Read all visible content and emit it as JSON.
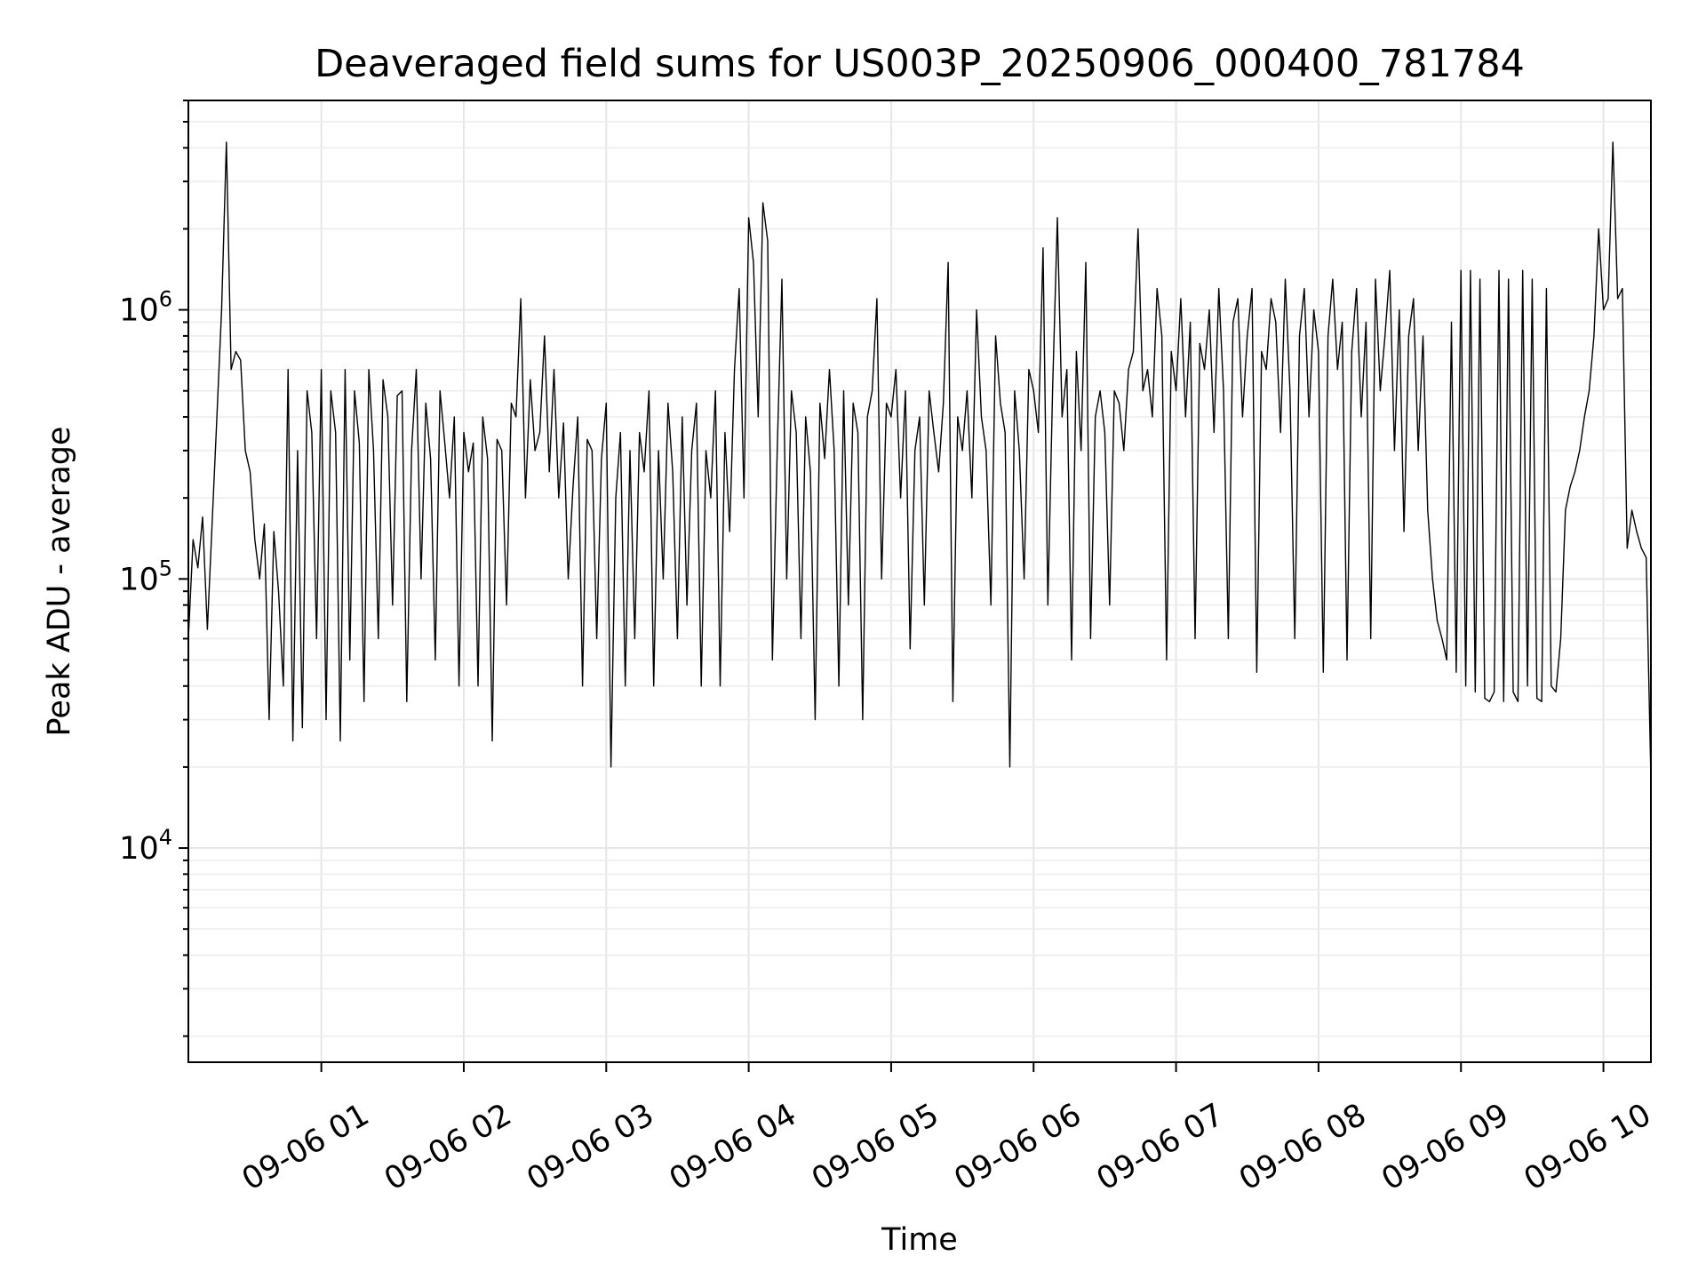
{
  "chart_data": {
    "type": "line",
    "title": "Deaveraged field sums for US003P_20250906_000400_781784",
    "xlabel": "Time",
    "ylabel": "Peak ADU - average",
    "yscale": "log",
    "ylim": [
      1600,
      6000000
    ],
    "xlim": [
      "2025-09-06 00:04",
      "2025-09-06 10:20"
    ],
    "x_tick_labels": [
      "09-06 01",
      "09-06 02",
      "09-06 03",
      "09-06 04",
      "09-06 05",
      "09-06 06",
      "09-06 07",
      "09-06 08",
      "09-06 09",
      "09-06 10"
    ],
    "y_tick_labels": [
      {
        "base": "10",
        "exp": "4"
      },
      {
        "base": "10",
        "exp": "5"
      },
      {
        "base": "10",
        "exp": "6"
      }
    ],
    "grid": true,
    "legend": false,
    "colors": {
      "line": "#000000",
      "grid": "#e6e6e6"
    },
    "series": [
      {
        "x": [
          "00:04",
          "00:06",
          "00:08",
          "00:10",
          "00:12",
          "00:14",
          "00:16",
          "00:18",
          "00:20",
          "00:22",
          "00:24",
          "00:26",
          "00:28",
          "00:30",
          "00:32",
          "00:34",
          "00:36",
          "00:38",
          "00:40",
          "00:42",
          "00:44",
          "00:46",
          "00:48",
          "00:50",
          "00:52",
          "00:54",
          "00:56",
          "00:58",
          "01:00",
          "01:02",
          "01:04",
          "01:06",
          "01:08",
          "01:10",
          "01:12",
          "01:14",
          "01:16",
          "01:18",
          "01:20",
          "01:22",
          "01:24",
          "01:26",
          "01:28",
          "01:30",
          "01:32",
          "01:34",
          "01:36",
          "01:38",
          "01:40",
          "01:42",
          "01:44",
          "01:46",
          "01:48",
          "01:50",
          "01:52",
          "01:54",
          "01:56",
          "01:58",
          "02:00",
          "02:02",
          "02:04",
          "02:06",
          "02:08",
          "02:10",
          "02:12",
          "02:14",
          "02:16",
          "02:18",
          "02:20",
          "02:22",
          "02:24",
          "02:26",
          "02:28",
          "02:30",
          "02:32",
          "02:34",
          "02:36",
          "02:38",
          "02:40",
          "02:42",
          "02:44",
          "02:46",
          "02:48",
          "02:50",
          "02:52",
          "02:54",
          "02:56",
          "02:58",
          "03:00",
          "03:02",
          "03:04",
          "03:06",
          "03:08",
          "03:10",
          "03:12",
          "03:14",
          "03:16",
          "03:18",
          "03:20",
          "03:22",
          "03:24",
          "03:26",
          "03:28",
          "03:30",
          "03:32",
          "03:34",
          "03:36",
          "03:38",
          "03:40",
          "03:42",
          "03:44",
          "03:46",
          "03:48",
          "03:50",
          "03:52",
          "03:54",
          "03:56",
          "03:58",
          "04:00",
          "04:02",
          "04:04",
          "04:06",
          "04:08",
          "04:10",
          "04:12",
          "04:14",
          "04:16",
          "04:18",
          "04:20",
          "04:22",
          "04:24",
          "04:26",
          "04:28",
          "04:30",
          "04:32",
          "04:34",
          "04:36",
          "04:38",
          "04:40",
          "04:42",
          "04:44",
          "04:46",
          "04:48",
          "04:50",
          "04:52",
          "04:54",
          "04:56",
          "04:58",
          "05:00",
          "05:02",
          "05:04",
          "05:06",
          "05:08",
          "05:10",
          "05:12",
          "05:14",
          "05:16",
          "05:18",
          "05:20",
          "05:22",
          "05:24",
          "05:26",
          "05:28",
          "05:30",
          "05:32",
          "05:34",
          "05:36",
          "05:38",
          "05:40",
          "05:42",
          "05:44",
          "05:46",
          "05:48",
          "05:50",
          "05:52",
          "05:54",
          "05:56",
          "05:58",
          "06:00",
          "06:02",
          "06:04",
          "06:06",
          "06:08",
          "06:10",
          "06:12",
          "06:14",
          "06:16",
          "06:18",
          "06:20",
          "06:22",
          "06:24",
          "06:26",
          "06:28",
          "06:30",
          "06:32",
          "06:34",
          "06:36",
          "06:38",
          "06:40",
          "06:42",
          "06:44",
          "06:46",
          "06:48",
          "06:50",
          "06:52",
          "06:54",
          "06:56",
          "06:58",
          "07:00",
          "07:02",
          "07:04",
          "07:06",
          "07:08",
          "07:10",
          "07:12",
          "07:14",
          "07:16",
          "07:18",
          "07:20",
          "07:22",
          "07:24",
          "07:26",
          "07:28",
          "07:30",
          "07:32",
          "07:34",
          "07:36",
          "07:38",
          "07:40",
          "07:42",
          "07:44",
          "07:46",
          "07:48",
          "07:50",
          "07:52",
          "07:54",
          "07:56",
          "07:58",
          "08:00",
          "08:02",
          "08:04",
          "08:06",
          "08:08",
          "08:10",
          "08:12",
          "08:14",
          "08:16",
          "08:18",
          "08:20",
          "08:22",
          "08:24",
          "08:26",
          "08:28",
          "08:30",
          "08:32",
          "08:34",
          "08:36",
          "08:38",
          "08:40",
          "08:42",
          "08:44",
          "08:46",
          "08:48",
          "08:50",
          "08:52",
          "08:54",
          "08:56",
          "08:58",
          "09:00",
          "09:02",
          "09:04",
          "09:06",
          "09:08",
          "09:10",
          "09:12",
          "09:14",
          "09:16",
          "09:18",
          "09:20",
          "09:22",
          "09:24",
          "09:26",
          "09:28",
          "09:30",
          "09:32",
          "09:34",
          "09:36",
          "09:38",
          "09:40",
          "09:42",
          "09:44",
          "09:46",
          "09:48",
          "09:50",
          "09:52",
          "09:54",
          "09:56",
          "09:58",
          "10:00",
          "10:02",
          "10:04",
          "10:06",
          "10:08",
          "10:10",
          "10:12",
          "10:14",
          "10:16",
          "10:18",
          "10:20"
        ],
        "values": [
          60000,
          140000,
          110000,
          170000,
          65000,
          160000,
          400000,
          1000000,
          4200000,
          600000,
          700000,
          650000,
          300000,
          250000,
          140000,
          100000,
          160000,
          30000,
          150000,
          90000,
          40000,
          600000,
          25000,
          300000,
          28000,
          500000,
          350000,
          60000,
          600000,
          30000,
          500000,
          350000,
          25000,
          600000,
          50000,
          500000,
          320000,
          35000,
          600000,
          300000,
          60000,
          550000,
          400000,
          80000,
          480000,
          500000,
          35000,
          300000,
          600000,
          100000,
          450000,
          280000,
          50000,
          500000,
          320000,
          200000,
          400000,
          40000,
          350000,
          250000,
          320000,
          40000,
          400000,
          280000,
          25000,
          330000,
          300000,
          80000,
          450000,
          400000,
          1100000,
          200000,
          550000,
          300000,
          350000,
          800000,
          250000,
          600000,
          200000,
          380000,
          100000,
          220000,
          400000,
          40000,
          330000,
          300000,
          60000,
          280000,
          450000,
          20000,
          200000,
          350000,
          40000,
          300000,
          60000,
          350000,
          250000,
          500000,
          40000,
          300000,
          100000,
          450000,
          250000,
          60000,
          400000,
          80000,
          300000,
          450000,
          40000,
          300000,
          200000,
          500000,
          40000,
          350000,
          150000,
          600000,
          1200000,
          200000,
          2200000,
          1500000,
          400000,
          2500000,
          1800000,
          50000,
          300000,
          1300000,
          100000,
          500000,
          350000,
          60000,
          400000,
          250000,
          30000,
          450000,
          280000,
          600000,
          300000,
          40000,
          500000,
          80000,
          450000,
          350000,
          30000,
          400000,
          500000,
          1100000,
          100000,
          450000,
          400000,
          600000,
          200000,
          500000,
          55000,
          300000,
          400000,
          80000,
          500000,
          350000,
          250000,
          450000,
          1500000,
          35000,
          400000,
          300000,
          500000,
          200000,
          1000000,
          400000,
          300000,
          80000,
          800000,
          450000,
          350000,
          20000,
          500000,
          300000,
          100000,
          600000,
          500000,
          350000,
          1700000,
          80000,
          500000,
          2200000,
          400000,
          600000,
          50000,
          700000,
          300000,
          1500000,
          60000,
          400000,
          500000,
          350000,
          80000,
          500000,
          450000,
          300000,
          600000,
          700000,
          2000000,
          500000,
          600000,
          400000,
          1200000,
          800000,
          50000,
          700000,
          500000,
          1100000,
          400000,
          900000,
          60000,
          750000,
          600000,
          1000000,
          350000,
          1200000,
          500000,
          60000,
          900000,
          1100000,
          400000,
          800000,
          1200000,
          45000,
          700000,
          600000,
          1100000,
          900000,
          350000,
          1300000,
          500000,
          60000,
          800000,
          1200000,
          400000,
          1000000,
          700000,
          45000,
          800000,
          1300000,
          600000,
          900000,
          50000,
          700000,
          1200000,
          400000,
          900000,
          60000,
          1300000,
          500000,
          800000,
          1400000,
          300000,
          1000000,
          150000,
          800000,
          1100000,
          300000,
          800000,
          180000,
          100000,
          70000,
          60000,
          50000,
          900000,
          45000,
          1400000,
          40000,
          1400000,
          38000,
          1300000,
          36000,
          35000,
          38000,
          1400000,
          35000,
          1300000,
          38000,
          35000,
          1400000,
          40000,
          1300000,
          36000,
          35000,
          1200000,
          40000,
          38000,
          60000,
          180000,
          220000,
          250000,
          300000,
          400000,
          500000,
          800000,
          2000000,
          1000000,
          1100000,
          4200000,
          1100000,
          1200000,
          130000,
          180000,
          150000,
          130000,
          120000,
          18000
        ]
      }
    ]
  }
}
